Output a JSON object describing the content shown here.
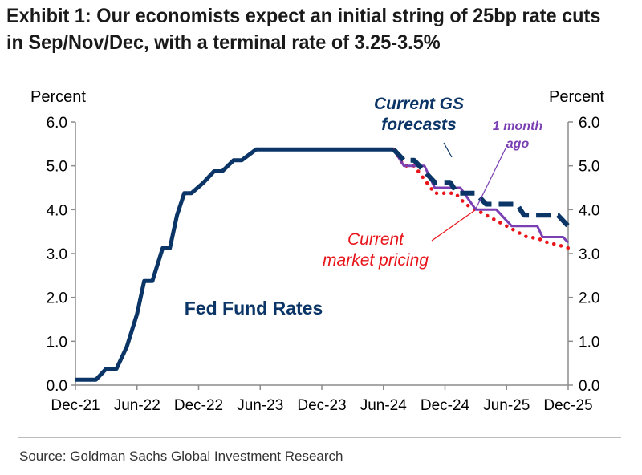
{
  "title_lines": [
    "Exhibit 1: Our economists expect an initial string of 25bp rate cuts",
    "in Sep/Nov/Dec, with a terminal rate of 3.25-3.5%"
  ],
  "source": "Source: Goldman Sachs Global Investment Research",
  "chart_data": {
    "type": "line",
    "ylabel_left": "Percent",
    "ylabel_right": "Percent",
    "ylim": [
      0,
      6
    ],
    "yticks": [
      "0.0",
      "1.0",
      "2.0",
      "3.0",
      "4.0",
      "5.0",
      "6.0"
    ],
    "xlim": [
      0,
      48
    ],
    "xticks": [
      {
        "label": "Dec-21",
        "x": 0
      },
      {
        "label": "Jun-22",
        "x": 6
      },
      {
        "label": "Dec-22",
        "x": 12
      },
      {
        "label": "Jun-23",
        "x": 18
      },
      {
        "label": "Dec-23",
        "x": 24
      },
      {
        "label": "Jun-24",
        "x": 30
      },
      {
        "label": "Dec-24",
        "x": 36
      },
      {
        "label": "Jun-25",
        "x": 42
      },
      {
        "label": "Dec-25",
        "x": 48
      }
    ],
    "grid": false,
    "series": [
      {
        "name": "Fed Fund Rates",
        "color": "#0b3566",
        "style": "solid",
        "points": [
          [
            0,
            0.125
          ],
          [
            2,
            0.125
          ],
          [
            3,
            0.375
          ],
          [
            4,
            0.375
          ],
          [
            5,
            0.875
          ],
          [
            6,
            1.625
          ],
          [
            6.7,
            2.375
          ],
          [
            7.5,
            2.375
          ],
          [
            8.5,
            3.125
          ],
          [
            9.2,
            3.125
          ],
          [
            9.9,
            3.875
          ],
          [
            10.6,
            4.375
          ],
          [
            11.3,
            4.375
          ],
          [
            12.5,
            4.625
          ],
          [
            13.5,
            4.875
          ],
          [
            14.3,
            4.875
          ],
          [
            15.4,
            5.125
          ],
          [
            16.2,
            5.125
          ],
          [
            17.6,
            5.375
          ],
          [
            31,
            5.375
          ]
        ]
      },
      {
        "name": "Current GS forecasts",
        "color": "#0b3566",
        "style": "dashed",
        "points": [
          [
            31,
            5.375
          ],
          [
            32,
            5.125
          ],
          [
            33,
            5.125
          ],
          [
            35,
            4.625
          ],
          [
            36.5,
            4.625
          ],
          [
            37.2,
            4.375
          ],
          [
            39,
            4.375
          ],
          [
            40,
            4.125
          ],
          [
            43,
            4.125
          ],
          [
            43.7,
            3.875
          ],
          [
            47,
            3.875
          ],
          [
            48,
            3.625
          ]
        ]
      },
      {
        "name": "1 month ago",
        "color": "#7a3fb3",
        "style": "solid",
        "points": [
          [
            31,
            5.375
          ],
          [
            32,
            5.0
          ],
          [
            34,
            5.0
          ],
          [
            35,
            4.5
          ],
          [
            37.5,
            4.5
          ],
          [
            39,
            4.0
          ],
          [
            41,
            4.0
          ],
          [
            42.5,
            3.625
          ],
          [
            45,
            3.625
          ],
          [
            45.5,
            3.375
          ],
          [
            47.5,
            3.375
          ],
          [
            48,
            3.25
          ]
        ]
      },
      {
        "name": "Current market pricing",
        "color": "#e8151b",
        "style": "dotted",
        "points": [
          [
            31,
            5.375
          ],
          [
            32,
            5.0
          ],
          [
            33,
            5.0
          ],
          [
            35,
            4.375
          ],
          [
            37,
            4.375
          ],
          [
            38,
            4.125
          ],
          [
            39,
            4.0
          ],
          [
            40,
            3.875
          ],
          [
            41,
            3.75
          ],
          [
            42,
            3.625
          ],
          [
            43,
            3.5
          ],
          [
            44,
            3.375
          ],
          [
            45,
            3.35
          ],
          [
            46,
            3.25
          ],
          [
            47,
            3.2
          ],
          [
            48,
            3.125
          ]
        ]
      }
    ],
    "annotations": [
      {
        "text_lines": [
          "Current GS",
          "forecasts"
        ],
        "color": "#0b3566",
        "italic": true,
        "points_to": "Current GS forecasts"
      },
      {
        "text_lines": [
          "1 month",
          "ago"
        ],
        "color": "#7a3fb3",
        "italic": true,
        "points_to": "1 month ago"
      },
      {
        "text_lines": [
          "Current",
          "market pricing"
        ],
        "color": "#e8151b",
        "italic": true,
        "points_to": "Current market pricing"
      },
      {
        "text_lines": [
          "Fed Fund Rates"
        ],
        "color": "#0b3566",
        "italic": false,
        "points_to": "Fed Fund Rates"
      }
    ]
  }
}
